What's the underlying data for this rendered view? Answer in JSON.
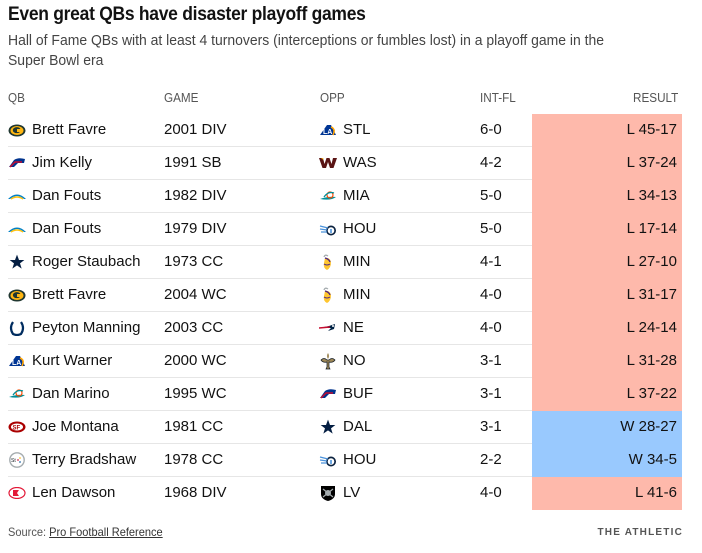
{
  "title": "Even great QBs have disaster playoff games",
  "subtitle": "Hall of Fame QBs with at least 4 turnovers (interceptions or fumbles lost) in a playoff game in the Super Bowl era",
  "columns": {
    "qb": "QB",
    "game": "GAME",
    "opp": "OPP",
    "intfl": "INT-FL",
    "result": "RESULT"
  },
  "colors": {
    "loss": "#feb9ab",
    "win": "#99c9fe"
  },
  "rows": [
    {
      "qb": "Brett Favre",
      "qb_logo": "packers-logo",
      "game": "2001 DIV",
      "opp": "STL",
      "opp_logo": "rams-logo",
      "intfl": "6-0",
      "result": "L 45-17",
      "outcome": "loss"
    },
    {
      "qb": "Jim Kelly",
      "qb_logo": "bills-logo",
      "game": "1991 SB",
      "opp": "WAS",
      "opp_logo": "commanders-logo",
      "intfl": "4-2",
      "result": "L 37-24",
      "outcome": "loss"
    },
    {
      "qb": "Dan Fouts",
      "qb_logo": "chargers-logo",
      "game": "1982 DIV",
      "opp": "MIA",
      "opp_logo": "dolphins-logo",
      "intfl": "5-0",
      "result": "L 34-13",
      "outcome": "loss"
    },
    {
      "qb": "Dan Fouts",
      "qb_logo": "chargers-logo",
      "game": "1979 DIV",
      "opp": "HOU",
      "opp_logo": "titans-logo",
      "intfl": "5-0",
      "result": "L 17-14",
      "outcome": "loss"
    },
    {
      "qb": "Roger Staubach",
      "qb_logo": "cowboys-logo",
      "game": "1973 CC",
      "opp": "MIN",
      "opp_logo": "vikings-logo",
      "intfl": "4-1",
      "result": "L 27-10",
      "outcome": "loss"
    },
    {
      "qb": "Brett Favre",
      "qb_logo": "packers-logo",
      "game": "2004 WC",
      "opp": "MIN",
      "opp_logo": "vikings-logo",
      "intfl": "4-0",
      "result": "L 31-17",
      "outcome": "loss"
    },
    {
      "qb": "Peyton Manning",
      "qb_logo": "colts-logo",
      "game": "2003 CC",
      "opp": "NE",
      "opp_logo": "patriots-logo",
      "intfl": "4-0",
      "result": "L 24-14",
      "outcome": "loss"
    },
    {
      "qb": "Kurt Warner",
      "qb_logo": "rams-logo",
      "game": "2000 WC",
      "opp": "NO",
      "opp_logo": "saints-logo",
      "intfl": "3-1",
      "result": "L 31-28",
      "outcome": "loss"
    },
    {
      "qb": "Dan Marino",
      "qb_logo": "dolphins-logo",
      "game": "1995 WC",
      "opp": "BUF",
      "opp_logo": "bills-logo",
      "intfl": "3-1",
      "result": "L 37-22",
      "outcome": "loss"
    },
    {
      "qb": "Joe Montana",
      "qb_logo": "49ers-logo",
      "game": "1981 CC",
      "opp": "DAL",
      "opp_logo": "cowboys-logo",
      "intfl": "3-1",
      "result": "W 28-27",
      "outcome": "win"
    },
    {
      "qb": "Terry Bradshaw",
      "qb_logo": "steelers-logo",
      "game": "1978 CC",
      "opp": "HOU",
      "opp_logo": "titans-logo",
      "intfl": "2-2",
      "result": "W 34-5",
      "outcome": "win"
    },
    {
      "qb": "Len Dawson",
      "qb_logo": "chiefs-logo",
      "game": "1968 DIV",
      "opp": "LV",
      "opp_logo": "raiders-logo",
      "intfl": "4-0",
      "result": "L 41-6",
      "outcome": "loss"
    }
  ],
  "source_label": "Source:",
  "source_link": "Pro Football Reference",
  "brand": "THE ATHLETIC"
}
